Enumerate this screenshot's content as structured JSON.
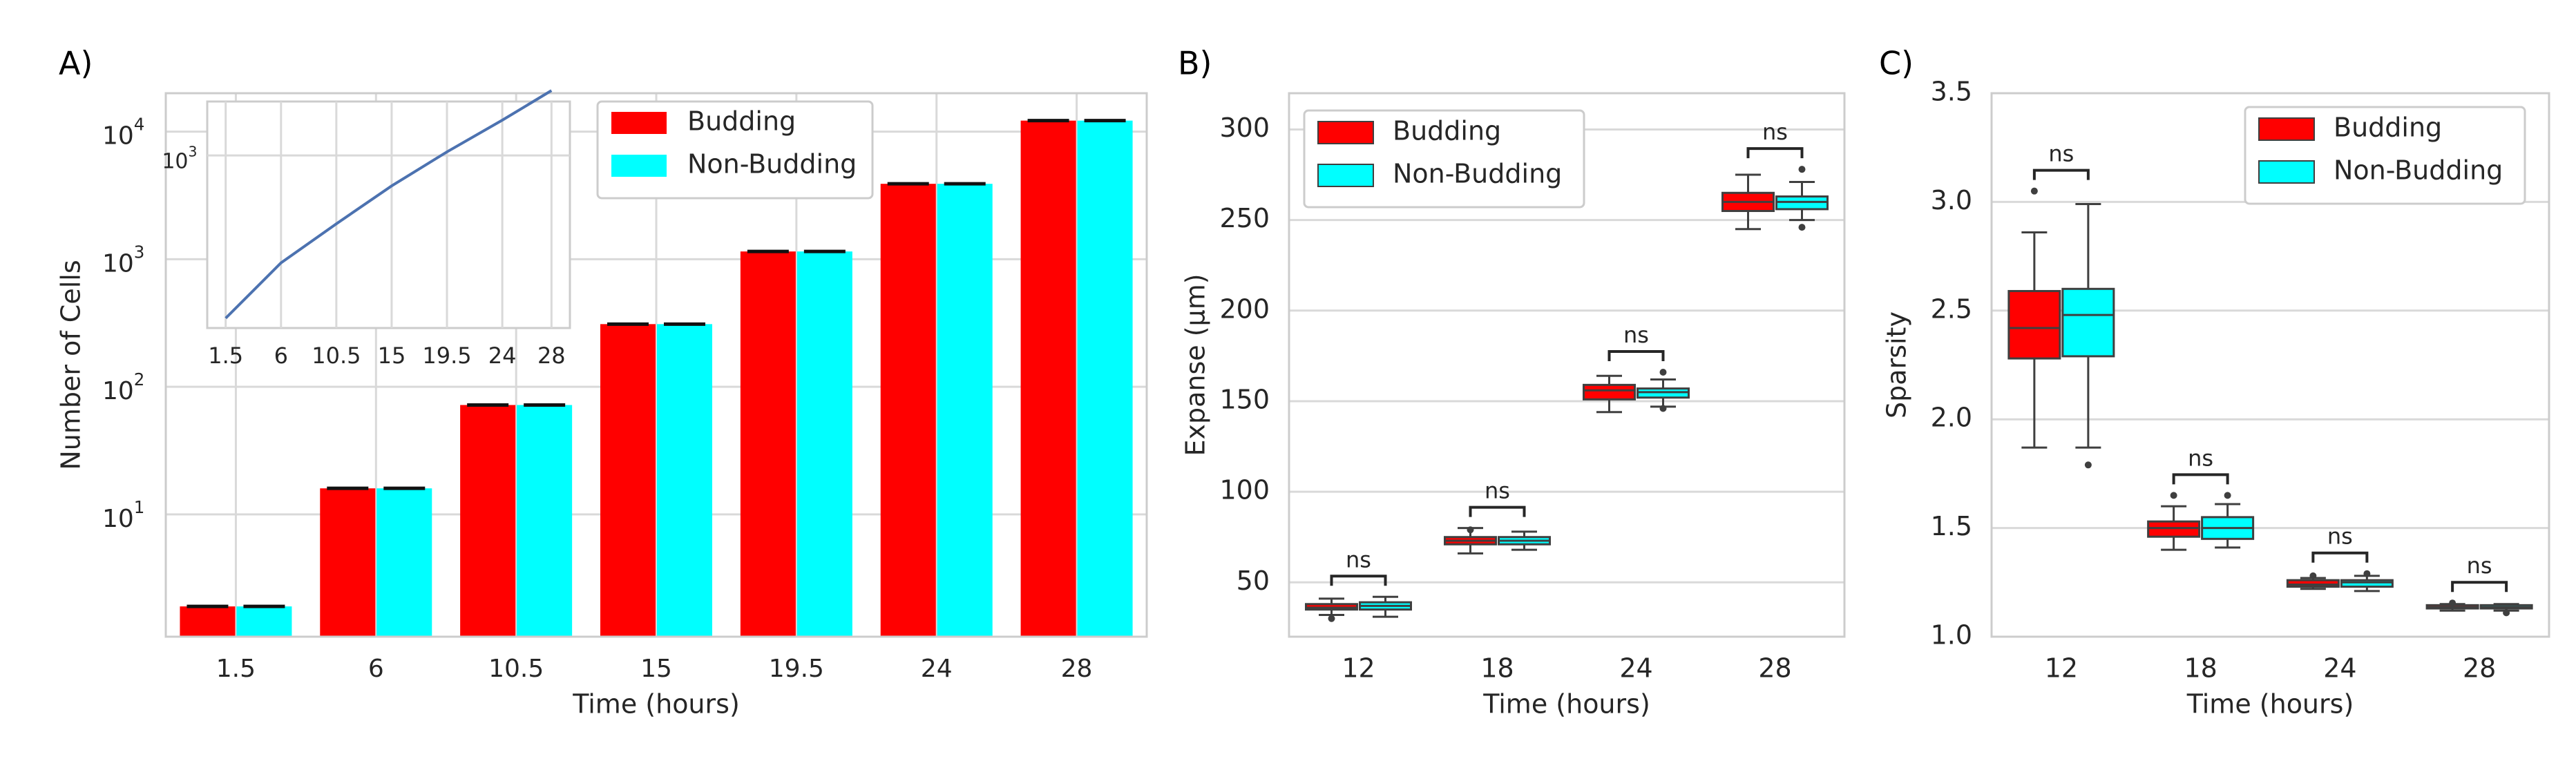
{
  "colors": {
    "budding": "#ff0000",
    "non_budding": "#00ffff",
    "grid": "#d9d9d9",
    "frame": "#cccccc",
    "text": "#262626",
    "inset_line": "#4c72b0",
    "box_line": "#3f3f3f",
    "bracket": "#262626"
  },
  "chart_data": [
    {
      "panel": "A)",
      "type": "bar",
      "xlabel": "Time (hours)",
      "ylabel": "Number of Cells",
      "yscale": "log",
      "ylim": [
        1.1,
        20000
      ],
      "y_ticks": [
        {
          "value": 10,
          "base": "10",
          "exp": "1"
        },
        {
          "value": 100,
          "base": "10",
          "exp": "2"
        },
        {
          "value": 1000,
          "base": "10",
          "exp": "3"
        },
        {
          "value": 10000,
          "base": "10",
          "exp": "4"
        }
      ],
      "categories": [
        "1.5",
        "6",
        "10.5",
        "15",
        "19.5",
        "24",
        "28"
      ],
      "series": [
        {
          "name": "Budding",
          "color_key": "budding",
          "values": [
            1.9,
            16,
            72,
            310,
            1150,
            3900,
            12200
          ]
        },
        {
          "name": "Non-Budding",
          "color_key": "non_budding",
          "values": [
            1.9,
            16,
            72,
            310,
            1150,
            3900,
            12200
          ]
        }
      ],
      "legend": {
        "position": "top-right",
        "entries": [
          "Budding",
          "Non-Budding"
        ]
      },
      "inset": {
        "type": "line",
        "x_ticks": [
          "1.5",
          "6",
          "10.5",
          "15",
          "19.5",
          "24",
          "28"
        ],
        "x_values": [
          1.5,
          6,
          10.5,
          15,
          19.5,
          24,
          28
        ],
        "xlim": [
          0,
          29.5
        ],
        "ylim": [
          1.3,
          8000
        ],
        "y_tick": {
          "value": 1000,
          "base": "10",
          "exp": "3"
        },
        "values": [
          1.9,
          16,
          72,
          310,
          1150,
          3900,
          12200
        ]
      }
    },
    {
      "panel": "B)",
      "type": "box",
      "xlabel": "Time (hours)",
      "ylabel": "Expanse (μm)",
      "ylim": [
        20,
        320
      ],
      "y_ticks": [
        "50",
        "100",
        "150",
        "200",
        "250",
        "300"
      ],
      "categories": [
        "12",
        "18",
        "24",
        "28"
      ],
      "legend": {
        "position": "top-left",
        "entries": [
          "Budding",
          "Non-Budding"
        ]
      },
      "significance": [
        "ns",
        "ns",
        "ns",
        "ns"
      ],
      "boxes": [
        {
          "category": "12",
          "series": "Budding",
          "whislo": 32,
          "q1": 35,
          "med": 36,
          "q3": 38,
          "whishi": 41,
          "fliers": [
            30
          ]
        },
        {
          "category": "12",
          "series": "Non-Budding",
          "whislo": 31,
          "q1": 35,
          "med": 37,
          "q3": 39,
          "whishi": 42,
          "fliers": []
        },
        {
          "category": "18",
          "series": "Budding",
          "whislo": 66,
          "q1": 71,
          "med": 73,
          "q3": 75,
          "whishi": 80,
          "fliers": [
            79
          ]
        },
        {
          "category": "18",
          "series": "Non-Budding",
          "whislo": 68,
          "q1": 71,
          "med": 73,
          "q3": 75,
          "whishi": 78,
          "fliers": []
        },
        {
          "category": "24",
          "series": "Budding",
          "whislo": 144,
          "q1": 151,
          "med": 156,
          "q3": 159,
          "whishi": 164,
          "fliers": []
        },
        {
          "category": "24",
          "series": "Non-Budding",
          "whislo": 147,
          "q1": 152,
          "med": 155,
          "q3": 157,
          "whishi": 162,
          "fliers": [
            166,
            146
          ]
        },
        {
          "category": "28",
          "series": "Budding",
          "whislo": 245,
          "q1": 255,
          "med": 260,
          "q3": 265,
          "whishi": 275,
          "fliers": []
        },
        {
          "category": "28",
          "series": "Non-Budding",
          "whislo": 250,
          "q1": 256,
          "med": 260,
          "q3": 263,
          "whishi": 271,
          "fliers": [
            278,
            246
          ]
        }
      ]
    },
    {
      "panel": "C)",
      "type": "box",
      "xlabel": "Time (hours)",
      "ylabel": "Sparsity",
      "ylim": [
        1.0,
        3.5
      ],
      "y_ticks": [
        "1.0",
        "1.5",
        "2.0",
        "2.5",
        "3.0",
        "3.5"
      ],
      "categories": [
        "12",
        "18",
        "24",
        "28"
      ],
      "legend": {
        "position": "top-right",
        "entries": [
          "Budding",
          "Non-Budding"
        ]
      },
      "significance": [
        "ns",
        "ns",
        "ns",
        "ns"
      ],
      "boxes": [
        {
          "category": "12",
          "series": "Budding",
          "whislo": 1.87,
          "q1": 2.28,
          "med": 2.42,
          "q3": 2.59,
          "whishi": 2.86,
          "fliers": [
            3.05
          ]
        },
        {
          "category": "12",
          "series": "Non-Budding",
          "whislo": 1.87,
          "q1": 2.29,
          "med": 2.48,
          "q3": 2.6,
          "whishi": 2.99,
          "fliers": [
            1.79
          ]
        },
        {
          "category": "18",
          "series": "Budding",
          "whislo": 1.4,
          "q1": 1.46,
          "med": 1.5,
          "q3": 1.53,
          "whishi": 1.6,
          "fliers": [
            1.65
          ]
        },
        {
          "category": "18",
          "series": "Non-Budding",
          "whislo": 1.41,
          "q1": 1.45,
          "med": 1.5,
          "q3": 1.55,
          "whishi": 1.61,
          "fliers": [
            1.65
          ]
        },
        {
          "category": "24",
          "series": "Budding",
          "whislo": 1.22,
          "q1": 1.23,
          "med": 1.24,
          "q3": 1.26,
          "whishi": 1.27,
          "fliers": [
            1.28
          ]
        },
        {
          "category": "24",
          "series": "Non-Budding",
          "whislo": 1.21,
          "q1": 1.23,
          "med": 1.25,
          "q3": 1.26,
          "whishi": 1.28,
          "fliers": [
            1.29
          ]
        },
        {
          "category": "28",
          "series": "Budding",
          "whislo": 1.12,
          "q1": 1.13,
          "med": 1.135,
          "q3": 1.145,
          "whishi": 1.15,
          "fliers": [
            1.155
          ]
        },
        {
          "category": "28",
          "series": "Non-Budding",
          "whislo": 1.12,
          "q1": 1.13,
          "med": 1.135,
          "q3": 1.145,
          "whishi": 1.15,
          "fliers": [
            1.11
          ]
        }
      ]
    }
  ]
}
